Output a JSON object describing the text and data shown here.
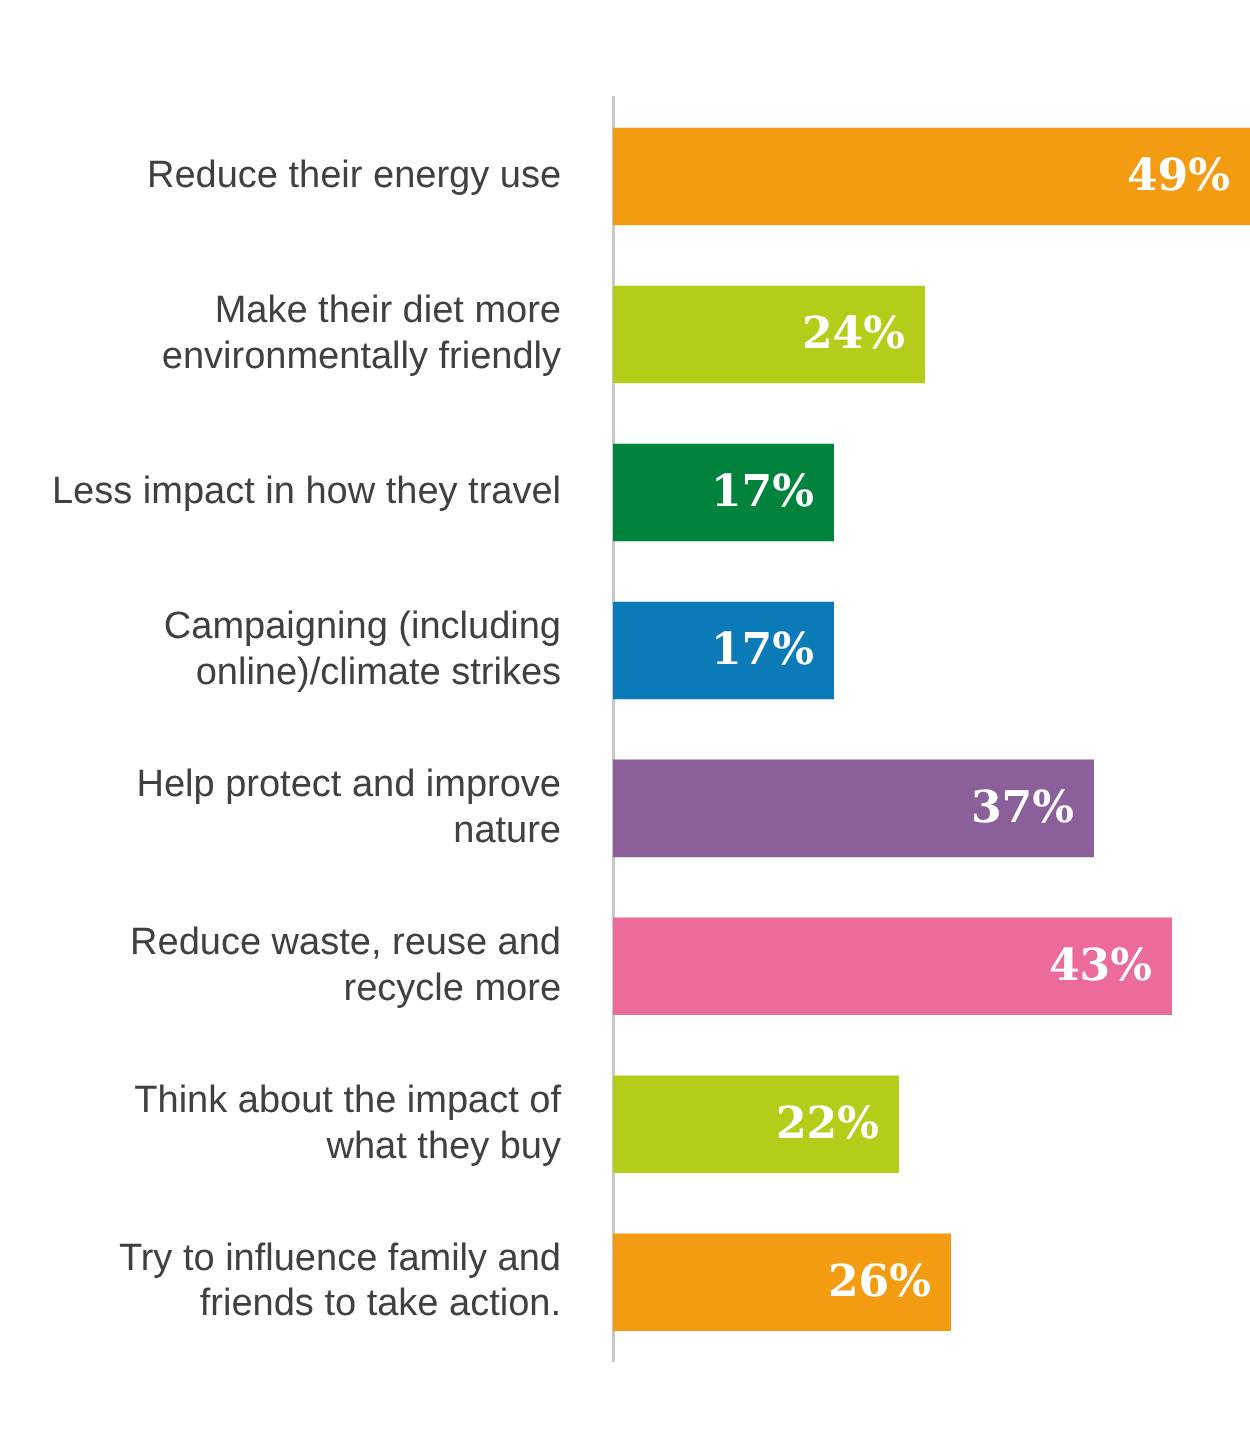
{
  "chart_data": {
    "type": "bar",
    "orientation": "horizontal",
    "categories": [
      "Reduce their energy use",
      "Make their diet more\nenvironmentally friendly",
      "Less impact in how they travel",
      "Campaigning (including\nonline)/climate strikes",
      "Help protect and improve\nnature",
      "Reduce waste, reuse and\nrecycle more",
      "Think about the impact of\nwhat they buy",
      "Try to influence family and\nfriends to take action."
    ],
    "values": [
      49,
      24,
      17,
      17,
      37,
      43,
      22,
      26
    ],
    "colors": [
      "#f39c12",
      "#b5cc18",
      "#00843d",
      "#0a7bb8",
      "#8a5f9a",
      "#ec6a9c",
      "#b5cc18",
      "#f39c12"
    ],
    "value_labels": [
      "49%",
      "24%",
      "17%",
      "17%",
      "37%",
      "43%",
      "22%",
      "26%"
    ],
    "xlim": [
      0,
      49
    ],
    "tick_labels": "y",
    "legend": false
  }
}
